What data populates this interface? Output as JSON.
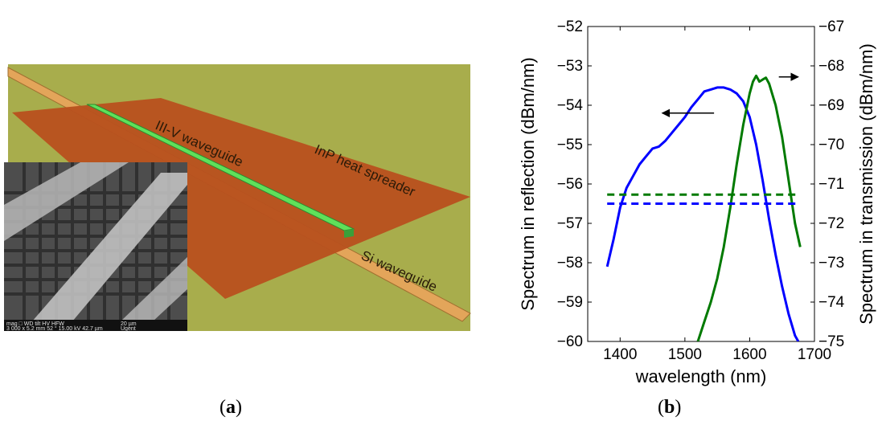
{
  "panel_a": {
    "caption_open": "(",
    "caption_letter": "a",
    "caption_close": ")",
    "labels": {
      "waveguide": "III-V waveguide",
      "spreader": "InP heat spreader",
      "si": "Si waveguide"
    },
    "sem_info_line1": "mag □ WD tilt HV HFW",
    "sem_info_line2": "3 000 x 5.2 mm 52 ° 15.00 kV 42.7 µm",
    "sem_scale": "20 µm",
    "sem_logo": "Ugent",
    "colors": {
      "background": "#a8ad4c",
      "spreader": "#b8511e",
      "waveguide": "#5fe05a",
      "si": "#e3a55a"
    }
  },
  "panel_b": {
    "caption_open": "(",
    "caption_letter": "b",
    "caption_close": ")"
  },
  "chart_data": {
    "type": "line",
    "xlabel": "wavelength (nm)",
    "ylabel_left": "Spectrum in reflection (dBm/nm)",
    "ylabel_right": "Spectrum in transmission (dBm/nm)",
    "xlim": [
      1350,
      1700
    ],
    "ylim_left": [
      -60,
      -52
    ],
    "ylim_right": [
      -75,
      -67
    ],
    "xticks": [
      1400,
      1500,
      1600,
      1700
    ],
    "yticks_left": [
      -60,
      -59,
      -58,
      -57,
      -56,
      -55,
      -54,
      -53,
      -52
    ],
    "yticks_right": [
      -75,
      -74,
      -73,
      -72,
      -71,
      -70,
      -69,
      -68,
      -67
    ],
    "xtick_labels": [
      "1400",
      "1500",
      "1600",
      "1700"
    ],
    "ytick_labels_left": [
      "−60",
      "−59",
      "−58",
      "−57",
      "−56",
      "−55",
      "−54",
      "−53",
      "−52"
    ],
    "ytick_labels_right": [
      "−75",
      "−74",
      "−73",
      "−72",
      "−71",
      "−70",
      "−69",
      "−68",
      "−67"
    ],
    "series": [
      {
        "axis": "left",
        "color": "#0000ff",
        "x": [
          1380,
          1390,
          1400,
          1410,
          1420,
          1430,
          1440,
          1450,
          1460,
          1470,
          1480,
          1490,
          1500,
          1510,
          1520,
          1530,
          1540,
          1550,
          1560,
          1570,
          1580,
          1590,
          1600,
          1610,
          1620,
          1630,
          1640,
          1650,
          1660,
          1670,
          1675
        ],
        "y": [
          -58.1,
          -57.4,
          -56.6,
          -56.1,
          -55.8,
          -55.5,
          -55.3,
          -55.1,
          -55.05,
          -54.9,
          -54.7,
          -54.5,
          -54.3,
          -54.05,
          -53.85,
          -53.65,
          -53.6,
          -53.55,
          -53.55,
          -53.6,
          -53.7,
          -53.9,
          -54.3,
          -55.0,
          -55.9,
          -56.9,
          -57.8,
          -58.6,
          -59.3,
          -59.85,
          -60.0
        ]
      },
      {
        "axis": "right",
        "color": "#007a00",
        "x": [
          1520,
          1530,
          1540,
          1550,
          1560,
          1570,
          1580,
          1590,
          1600,
          1605,
          1610,
          1615,
          1620,
          1625,
          1630,
          1640,
          1650,
          1660,
          1670,
          1678
        ],
        "y": [
          -75.0,
          -74.5,
          -74.0,
          -73.4,
          -72.6,
          -71.6,
          -70.5,
          -69.5,
          -68.7,
          -68.4,
          -68.25,
          -68.4,
          -68.35,
          -68.3,
          -68.45,
          -69.0,
          -69.8,
          -70.9,
          -72.0,
          -72.6
        ]
      },
      {
        "axis": "left",
        "color": "#0000ff",
        "style": "dashed",
        "x": [
          1380,
          1675
        ],
        "y": [
          -56.5,
          -56.5
        ]
      },
      {
        "axis": "right",
        "color": "#007a00",
        "style": "dashed",
        "x": [
          1380,
          1675
        ],
        "y": [
          -71.27,
          -71.27
        ]
      }
    ],
    "annotations": [
      {
        "type": "arrow",
        "direction": "left",
        "axis": "left",
        "from": [
          1545,
          -54.2
        ],
        "to": [
          1465,
          -54.2
        ]
      },
      {
        "type": "arrow",
        "direction": "right",
        "axis": "left",
        "from": [
          1645,
          -53.28
        ],
        "to": [
          1675,
          -53.28
        ]
      }
    ]
  }
}
